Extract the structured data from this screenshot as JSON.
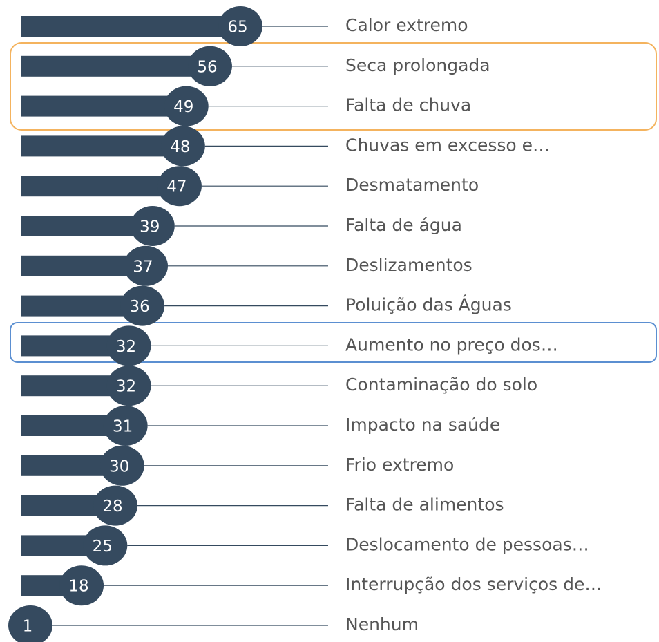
{
  "chart_data": {
    "type": "bar",
    "orientation": "horizontal",
    "categories": [
      "Calor extremo",
      "Seca prolongada",
      "Falta de chuva",
      "Chuvas em excesso e…",
      "Desmatamento",
      "Falta de água",
      "Deslizamentos",
      "Poluição das Águas",
      "Aumento no preço dos…",
      "Contaminação do solo",
      "Impacto na saúde",
      "Frio extremo",
      "Falta de alimentos",
      "Deslocamento de pessoas…",
      "Interrupção dos serviços de…",
      "Nenhum"
    ],
    "values": [
      65,
      56,
      49,
      48,
      47,
      39,
      37,
      36,
      32,
      32,
      31,
      30,
      28,
      25,
      18,
      1
    ],
    "color": "#354a5f"
  }
}
